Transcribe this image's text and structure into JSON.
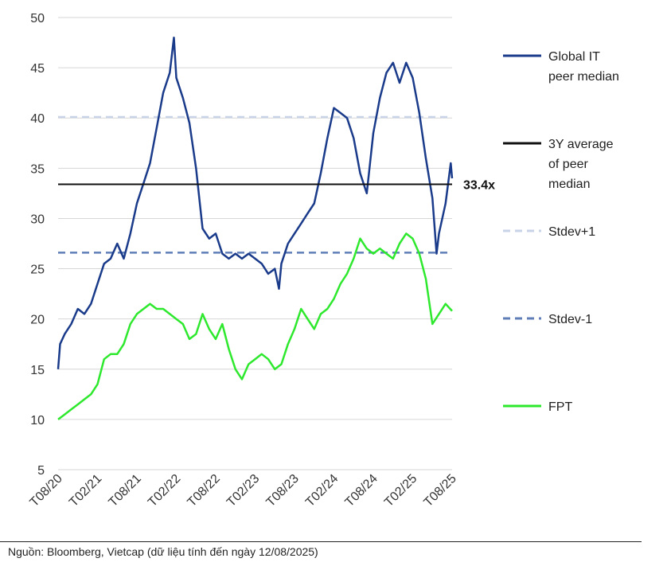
{
  "chart_data": {
    "type": "line",
    "ylim": [
      5,
      50
    ],
    "yticks": [
      5,
      10,
      15,
      20,
      25,
      30,
      35,
      40,
      45,
      50
    ],
    "xlim": [
      "2020-08",
      "2025-08"
    ],
    "xticks": [
      "T08/20",
      "T02/21",
      "T08/21",
      "T02/22",
      "T08/22",
      "T02/23",
      "T08/23",
      "T02/24",
      "T08/24",
      "T02/25",
      "T08/25"
    ],
    "grid": "horizontal",
    "legend_position": "right",
    "avg_label": "33.4x",
    "series": [
      {
        "key": "global",
        "name": "Global IT peer median",
        "name_lines": [
          "Global IT",
          "peer median"
        ],
        "color": "#1a3a8a",
        "style": "solid",
        "points": [
          [
            "2020-08",
            15.0
          ],
          [
            "2020-08-10",
            17.5
          ],
          [
            "2020-09",
            18.5
          ],
          [
            "2020-10",
            19.5
          ],
          [
            "2020-11",
            21.0
          ],
          [
            "2020-12",
            20.5
          ],
          [
            "2021-01",
            21.5
          ],
          [
            "2021-02",
            23.5
          ],
          [
            "2021-03",
            25.5
          ],
          [
            "2021-04",
            26.0
          ],
          [
            "2021-05",
            27.5
          ],
          [
            "2021-06",
            26.0
          ],
          [
            "2021-07",
            28.5
          ],
          [
            "2021-08",
            31.5
          ],
          [
            "2021-09",
            33.5
          ],
          [
            "2021-10",
            35.5
          ],
          [
            "2021-11",
            39.0
          ],
          [
            "2021-12",
            42.5
          ],
          [
            "2022-01",
            44.5
          ],
          [
            "2022-01-20",
            48.0
          ],
          [
            "2022-02",
            44.0
          ],
          [
            "2022-03",
            42.0
          ],
          [
            "2022-04",
            39.5
          ],
          [
            "2022-05",
            35.0
          ],
          [
            "2022-06",
            29.0
          ],
          [
            "2022-07",
            28.0
          ],
          [
            "2022-08",
            28.5
          ],
          [
            "2022-09",
            26.5
          ],
          [
            "2022-10",
            26.0
          ],
          [
            "2022-11",
            26.5
          ],
          [
            "2022-12",
            26.0
          ],
          [
            "2023-01",
            26.5
          ],
          [
            "2023-02",
            26.0
          ],
          [
            "2023-03",
            25.5
          ],
          [
            "2023-04",
            24.5
          ],
          [
            "2023-05",
            25.0
          ],
          [
            "2023-05-20",
            23.0
          ],
          [
            "2023-06",
            25.5
          ],
          [
            "2023-07",
            27.5
          ],
          [
            "2023-08",
            28.5
          ],
          [
            "2023-09",
            29.5
          ],
          [
            "2023-10",
            30.5
          ],
          [
            "2023-11",
            31.5
          ],
          [
            "2023-12",
            34.5
          ],
          [
            "2024-01",
            38.0
          ],
          [
            "2024-02",
            41.0
          ],
          [
            "2024-03",
            40.5
          ],
          [
            "2024-04",
            40.0
          ],
          [
            "2024-05",
            38.0
          ],
          [
            "2024-06",
            34.5
          ],
          [
            "2024-07",
            32.5
          ],
          [
            "2024-08",
            38.5
          ],
          [
            "2024-09",
            42.0
          ],
          [
            "2024-10",
            44.5
          ],
          [
            "2024-11",
            45.5
          ],
          [
            "2024-12",
            43.5
          ],
          [
            "2025-01",
            45.5
          ],
          [
            "2025-02",
            44.0
          ],
          [
            "2025-03",
            40.5
          ],
          [
            "2025-04",
            36.0
          ],
          [
            "2025-05",
            32.0
          ],
          [
            "2025-05-20",
            26.5
          ],
          [
            "2025-06",
            28.5
          ],
          [
            "2025-07",
            31.5
          ],
          [
            "2025-07-25",
            35.5
          ],
          [
            "2025-08",
            34.0
          ]
        ]
      },
      {
        "key": "avg",
        "name": "3Y average of peer median",
        "name_lines": [
          "3Y average",
          "of peer",
          "median"
        ],
        "color": "#111111",
        "style": "solid",
        "value": 33.4
      },
      {
        "key": "sdp",
        "name": "Stdev+1",
        "name_lines": [
          "Stdev+1"
        ],
        "color": "#c9d3e8",
        "style": "dashed",
        "value": 40.1
      },
      {
        "key": "sdm",
        "name": "Stdev-1",
        "name_lines": [
          "Stdev-1"
        ],
        "color": "#5f7eb8",
        "style": "dashed",
        "value": 26.6
      },
      {
        "key": "fpt",
        "name": "FPT",
        "name_lines": [
          "FPT"
        ],
        "color": "#2ee82e",
        "style": "solid",
        "points": [
          [
            "2020-08",
            10.0
          ],
          [
            "2020-09",
            10.5
          ],
          [
            "2020-10",
            11.0
          ],
          [
            "2020-11",
            11.5
          ],
          [
            "2020-12",
            12.0
          ],
          [
            "2021-01",
            12.5
          ],
          [
            "2021-02",
            13.5
          ],
          [
            "2021-03",
            16.0
          ],
          [
            "2021-04",
            16.5
          ],
          [
            "2021-05",
            16.5
          ],
          [
            "2021-06",
            17.5
          ],
          [
            "2021-07",
            19.5
          ],
          [
            "2021-08",
            20.5
          ],
          [
            "2021-09",
            21.0
          ],
          [
            "2021-10",
            21.5
          ],
          [
            "2021-11",
            21.0
          ],
          [
            "2021-12",
            21.0
          ],
          [
            "2022-01",
            20.5
          ],
          [
            "2022-02",
            20.0
          ],
          [
            "2022-03",
            19.5
          ],
          [
            "2022-04",
            18.0
          ],
          [
            "2022-05",
            18.5
          ],
          [
            "2022-06",
            20.5
          ],
          [
            "2022-07",
            19.0
          ],
          [
            "2022-08",
            18.0
          ],
          [
            "2022-09",
            19.5
          ],
          [
            "2022-10",
            17.0
          ],
          [
            "2022-11",
            15.0
          ],
          [
            "2022-12",
            14.0
          ],
          [
            "2023-01",
            15.5
          ],
          [
            "2023-02",
            16.0
          ],
          [
            "2023-03",
            16.5
          ],
          [
            "2023-04",
            16.0
          ],
          [
            "2023-05",
            15.0
          ],
          [
            "2023-06",
            15.5
          ],
          [
            "2023-07",
            17.5
          ],
          [
            "2023-08",
            19.0
          ],
          [
            "2023-09",
            21.0
          ],
          [
            "2023-10",
            20.0
          ],
          [
            "2023-11",
            19.0
          ],
          [
            "2023-12",
            20.5
          ],
          [
            "2024-01",
            21.0
          ],
          [
            "2024-02",
            22.0
          ],
          [
            "2024-03",
            23.5
          ],
          [
            "2024-04",
            24.5
          ],
          [
            "2024-05",
            26.0
          ],
          [
            "2024-06",
            28.0
          ],
          [
            "2024-07",
            27.0
          ],
          [
            "2024-08",
            26.5
          ],
          [
            "2024-09",
            27.0
          ],
          [
            "2024-10",
            26.5
          ],
          [
            "2024-11",
            26.0
          ],
          [
            "2024-12",
            27.5
          ],
          [
            "2025-01",
            28.5
          ],
          [
            "2025-02",
            28.0
          ],
          [
            "2025-03",
            26.5
          ],
          [
            "2025-04",
            24.0
          ],
          [
            "2025-05",
            19.5
          ],
          [
            "2025-06",
            20.5
          ],
          [
            "2025-07",
            21.5
          ],
          [
            "2025-08",
            20.8
          ]
        ]
      }
    ]
  },
  "source": "Nguồn: Bloomberg, Vietcap (dữ liệu tính đến ngày 12/08/2025)"
}
